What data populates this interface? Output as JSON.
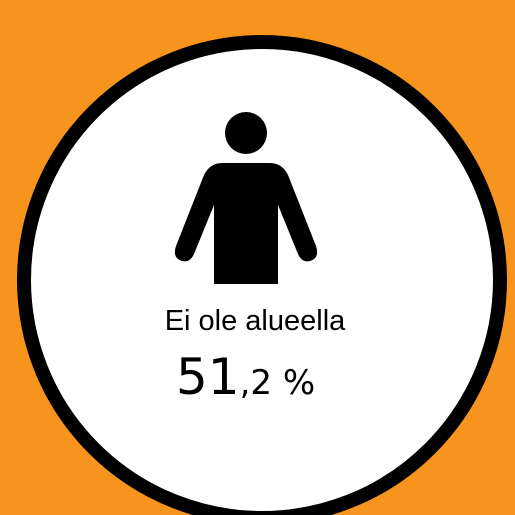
{
  "infographic": {
    "label": "Ei ole alueella",
    "value_whole": "51",
    "value_rest": ",2 %"
  }
}
